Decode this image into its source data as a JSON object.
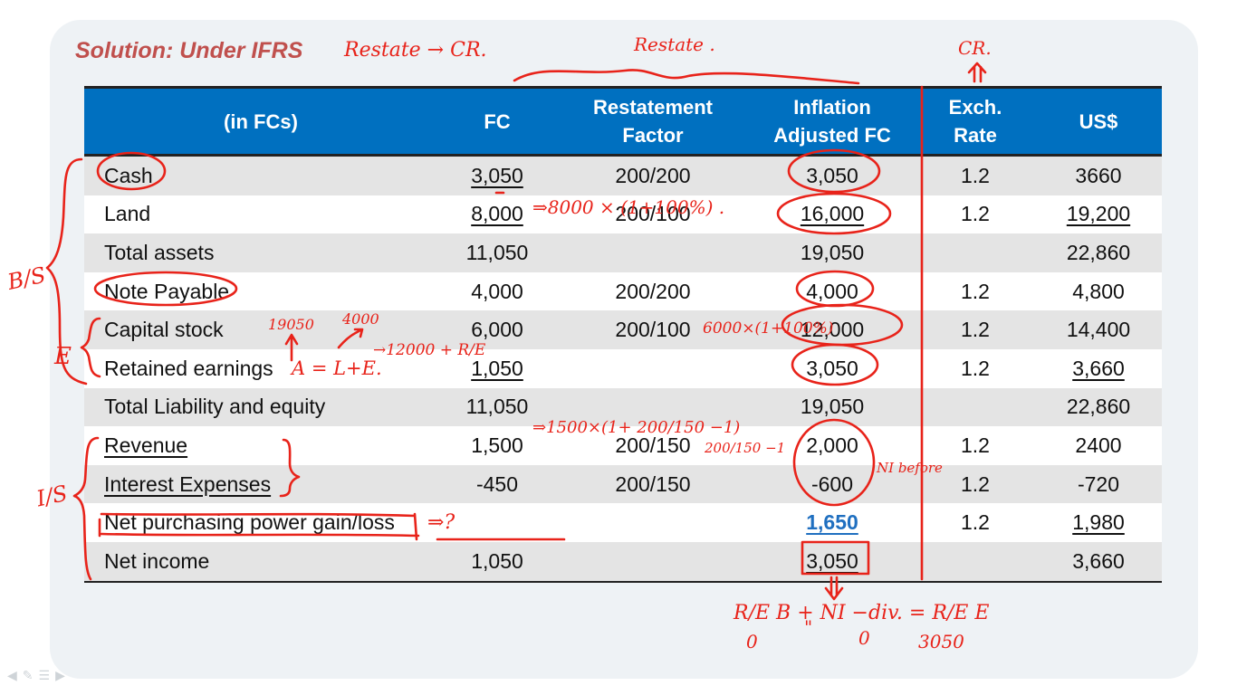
{
  "slide": {
    "title": "Solution: Under IFRS"
  },
  "table": {
    "headers": [
      [
        "(in FCs)"
      ],
      [
        "FC"
      ],
      [
        "Restatement",
        "Factor"
      ],
      [
        "Inflation",
        "Adjusted FC"
      ],
      [
        "Exch.",
        "Rate"
      ],
      [
        "US$"
      ]
    ],
    "rows": [
      {
        "label": "Cash",
        "fc": "3,050",
        "factor": "200/200",
        "adjusted": "3,050",
        "rate": "1.2",
        "usd": "3660"
      },
      {
        "label": "Land",
        "fc": "8,000",
        "factor": "200/100",
        "adjusted": "16,000",
        "rate": "1.2",
        "usd": "19,200"
      },
      {
        "label": "Total assets",
        "fc": "11,050",
        "factor": "",
        "adjusted": "19,050",
        "rate": "",
        "usd": "22,860"
      },
      {
        "label": "Note Payable",
        "fc": "4,000",
        "factor": "200/200",
        "adjusted": "4,000",
        "rate": "1.2",
        "usd": "4,800"
      },
      {
        "label": "Capital stock",
        "fc": "6,000",
        "factor": "200/100",
        "adjusted": "12,000",
        "rate": "1.2",
        "usd": "14,400"
      },
      {
        "label": "Retained earnings",
        "fc": "1,050",
        "factor": "",
        "adjusted": "3,050",
        "rate": "1.2",
        "usd": "3,660"
      },
      {
        "label": "Total Liability and equity",
        "fc": "11,050",
        "factor": "",
        "adjusted": "19,050",
        "rate": "",
        "usd": "22,860"
      },
      {
        "label": "Revenue",
        "fc": "1,500",
        "factor": "200/150",
        "adjusted": "2,000",
        "rate": "1.2",
        "usd": "2400"
      },
      {
        "label": "Interest Expenses",
        "fc": "-450",
        "factor": "200/150",
        "adjusted": "-600",
        "rate": "1.2",
        "usd": "-720"
      },
      {
        "label": "Net purchasing power gain/loss",
        "fc": "",
        "factor": "",
        "adjusted": "1,650",
        "rate": "1.2",
        "usd": "1,980"
      },
      {
        "label": "Net income",
        "fc": "1,050",
        "factor": "",
        "adjusted": "3,050",
        "rate": "",
        "usd": "3,660"
      }
    ]
  },
  "annotations": {
    "restate_cr": "Restate → CR.",
    "restate": "Restate .",
    "cr": "CR.",
    "bs": "B/S",
    "e": "E",
    "is": "I/S",
    "land_calc": "⇒8000 × (1+100%) .",
    "cap_calc": "6000×(1+100%)",
    "n19050": "19050",
    "n4000": "4000",
    "ale": "A = L+E.",
    "re_calc": "→12000 + R/E",
    "rev_calc": "⇒1500×(1+ 200/150 −1)",
    "rev_frac": "200/150 −1",
    "ni_before": "NI before",
    "arrow": "⇒?",
    "re_formula": "R/E B + NI −div. = R/E E",
    "zero1": "0",
    "ditto": "\"",
    "zero2": "0",
    "n3050": "3050",
    "ink_color": "#e8231a"
  },
  "toolbar": {
    "icons": [
      "back-icon",
      "pen-icon",
      "menu-icon",
      "forward-icon"
    ]
  }
}
